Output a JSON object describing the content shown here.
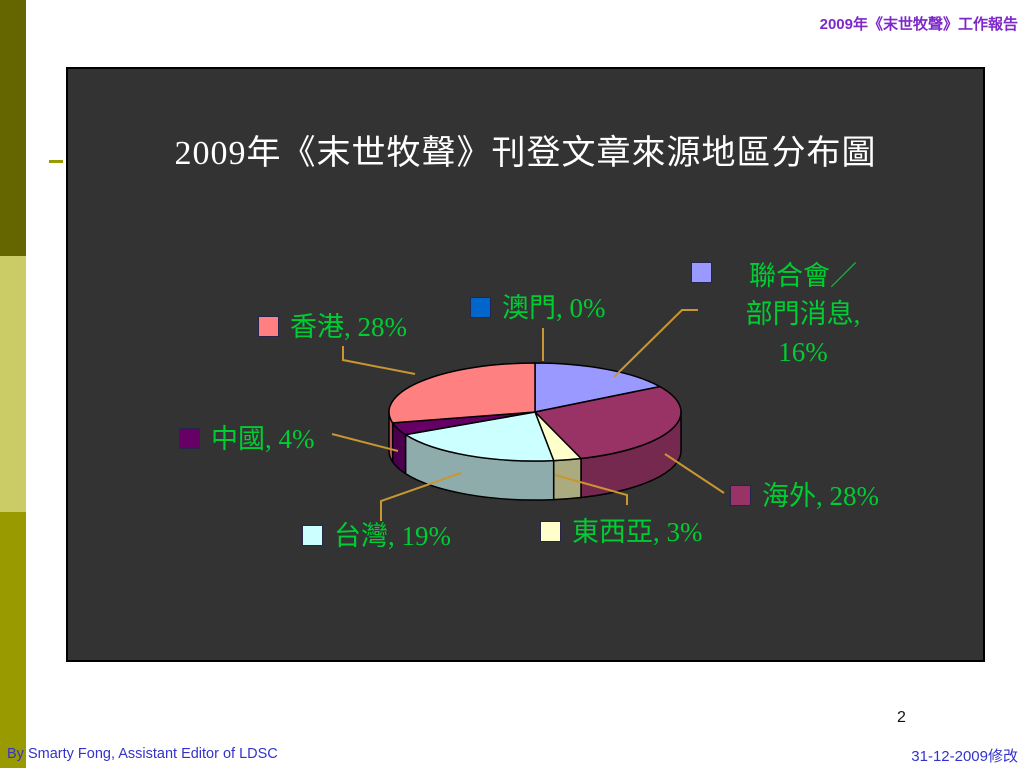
{
  "header": {
    "report_label": "2009年《末世牧聲》工作報告"
  },
  "slide": {
    "page_number": "2"
  },
  "footer": {
    "author": "By Smarty Fong, Assistant Editor of LDSC",
    "revision": "31-12-2009修改"
  },
  "colors": {
    "slide_background": "#333333",
    "header_text": "#7D28C8",
    "footer_text": "#3333CC",
    "sidebar_top": "#666600",
    "sidebar_middle": "#CCCC66",
    "sidebar_bottom": "#999900",
    "title_text": "#FFFFFF"
  },
  "chart_data": {
    "type": "pie",
    "title": "2009年《末世牧聲》刊登文章來源地區分布圖",
    "unit": "percent",
    "style": "3d",
    "direction": "clockwise",
    "start_angle_deg": 0,
    "background": "#333333",
    "label_color": "#00CC33",
    "leader_line_color": "#C89632",
    "slices": [
      {
        "label": "聯合會／部門消息",
        "value": 16,
        "display": "聯合會／\n部門消息,\n16%",
        "color": "#9999FF",
        "side_color": "#6B6BB3"
      },
      {
        "label": "海外",
        "value": 28,
        "display": "海外, 28%",
        "color": "#993366",
        "side_color": "#75294F"
      },
      {
        "label": "東西亞",
        "value": 3,
        "display": "東西亞, 3%",
        "color": "#FFFFCC",
        "side_color": "#ABAB80"
      },
      {
        "label": "台灣",
        "value": 19,
        "display": "台灣, 19%",
        "color": "#CCFFFF",
        "side_color": "#8FACAC"
      },
      {
        "label": "中國",
        "value": 4,
        "display": "中國, 4%",
        "color": "#660066",
        "side_color": "#4A004D"
      },
      {
        "label": "香港",
        "value": 28,
        "display": "香港, 28%",
        "color": "#FF8080",
        "side_color": "#C05A5A"
      },
      {
        "label": "澳門",
        "value": 0,
        "display": "澳門, 0%",
        "color": "#0066CC",
        "side_color": "#004C99"
      }
    ]
  }
}
